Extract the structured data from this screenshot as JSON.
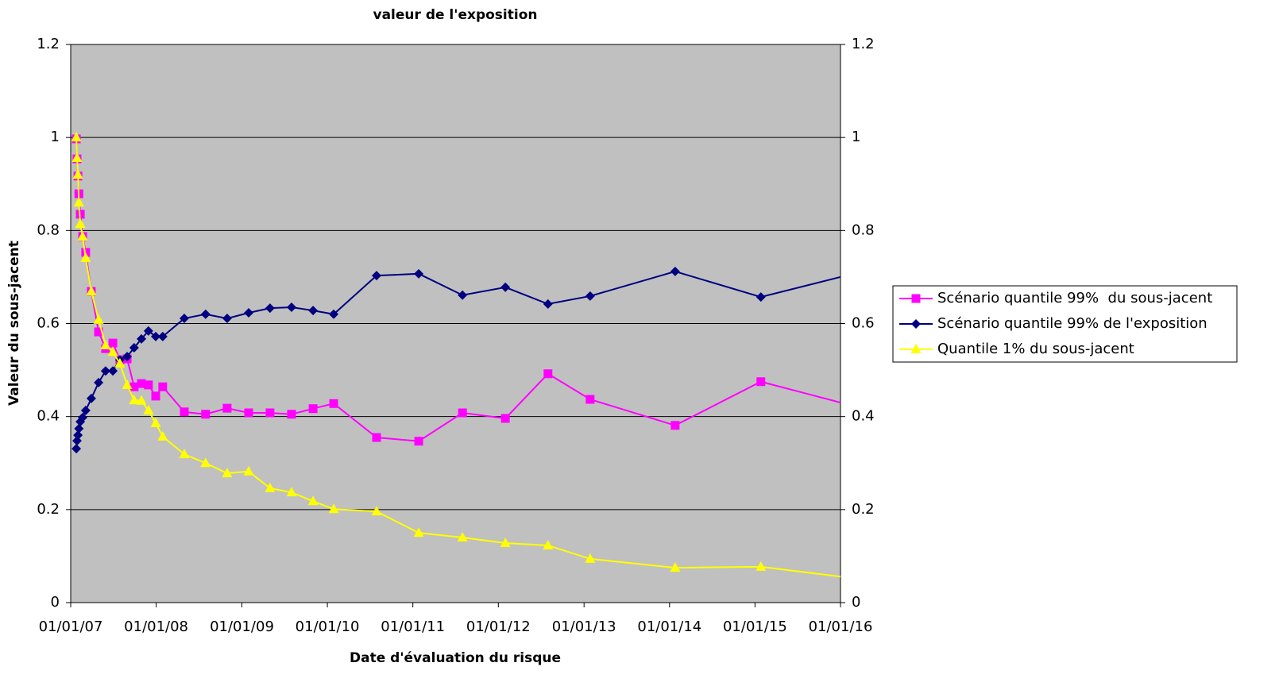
{
  "chart_data": {
    "type": "line",
    "title": "valeur de l'exposition",
    "xlabel": "Date d'évaluation du risque",
    "ylabel": "Valeur du sous-jacent",
    "x": [
      "2007-01-25",
      "2007-01-28",
      "2007-02-01",
      "2007-02-05",
      "2007-02-11",
      "2007-02-21",
      "2007-03-06",
      "2007-03-30",
      "2007-04-30",
      "2007-05-30",
      "2007-06-30",
      "2007-07-30",
      "2007-08-30",
      "2007-09-29",
      "2007-10-30",
      "2007-11-29",
      "2007-12-30",
      "2008-01-29",
      "2008-04-30",
      "2008-07-30",
      "2008-10-30",
      "2009-01-30",
      "2009-05-01",
      "2009-08-01",
      "2009-11-01",
      "2010-01-28",
      "2010-07-30",
      "2011-01-26",
      "2011-08-01",
      "2012-01-31",
      "2012-07-31",
      "2013-01-27",
      "2014-01-25",
      "2015-01-26",
      "2016-02-01"
    ],
    "series": [
      {
        "name": "Scénario quantile 99%  du sous-jacent",
        "color": "#ff00ff",
        "marker": "square",
        "values": [
          0.997,
          0.954,
          0.917,
          0.879,
          0.835,
          0.787,
          0.753,
          0.669,
          0.582,
          0.546,
          0.558,
          0.522,
          0.524,
          0.464,
          0.471,
          0.468,
          0.444,
          0.464,
          0.41,
          0.405,
          0.418,
          0.408,
          0.408,
          0.405,
          0.417,
          0.428,
          0.355,
          0.347,
          0.408,
          0.396,
          0.492,
          0.437,
          0.381,
          0.475,
          0.426
        ]
      },
      {
        "name": "Scénario quantile 99% de l'exposition",
        "color": "#000080",
        "marker": "diamond",
        "values": [
          0.331,
          0.348,
          0.36,
          0.374,
          0.389,
          0.398,
          0.413,
          0.439,
          0.473,
          0.498,
          0.498,
          0.522,
          0.529,
          0.548,
          0.567,
          0.584,
          0.572,
          0.572,
          0.611,
          0.62,
          0.611,
          0.623,
          0.633,
          0.635,
          0.628,
          0.62,
          0.703,
          0.707,
          0.661,
          0.678,
          0.642,
          0.659,
          0.712,
          0.657,
          0.704
        ]
      },
      {
        "name": "Quantile 1% du sous-jacent",
        "color": "#ffff00",
        "marker": "triangle",
        "values": [
          1.0,
          0.956,
          0.92,
          0.86,
          0.814,
          0.787,
          0.741,
          0.669,
          0.608,
          0.553,
          0.539,
          0.514,
          0.468,
          0.435,
          0.434,
          0.413,
          0.386,
          0.357,
          0.319,
          0.3,
          0.278,
          0.282,
          0.246,
          0.237,
          0.218,
          0.201,
          0.196,
          0.15,
          0.14,
          0.128,
          0.123,
          0.094,
          0.075,
          0.077,
          0.054
        ]
      }
    ],
    "xlim": [
      "2007-01-01",
      "2016-01-01"
    ],
    "xticks": [
      {
        "value": "2007-01-01",
        "label": "01/01/07"
      },
      {
        "value": "2008-01-01",
        "label": "01/01/08"
      },
      {
        "value": "2009-01-01",
        "label": "01/01/09"
      },
      {
        "value": "2010-01-01",
        "label": "01/01/10"
      },
      {
        "value": "2011-01-01",
        "label": "01/01/11"
      },
      {
        "value": "2012-01-01",
        "label": "01/01/12"
      },
      {
        "value": "2013-01-01",
        "label": "01/01/13"
      },
      {
        "value": "2014-01-01",
        "label": "01/01/14"
      },
      {
        "value": "2015-01-01",
        "label": "01/01/15"
      },
      {
        "value": "2016-01-01",
        "label": "01/01/16"
      }
    ],
    "ylim": [
      0,
      1.2
    ],
    "yticks": [
      0,
      0.2,
      0.4,
      0.6,
      0.8,
      1,
      1.2
    ],
    "y2lim": [
      0,
      1.2
    ],
    "y2ticks": [
      0,
      0.2,
      0.4,
      0.6,
      0.8,
      1,
      1.2
    ],
    "grid": true,
    "plot_background": "#c0c0c0",
    "legend": "right"
  }
}
